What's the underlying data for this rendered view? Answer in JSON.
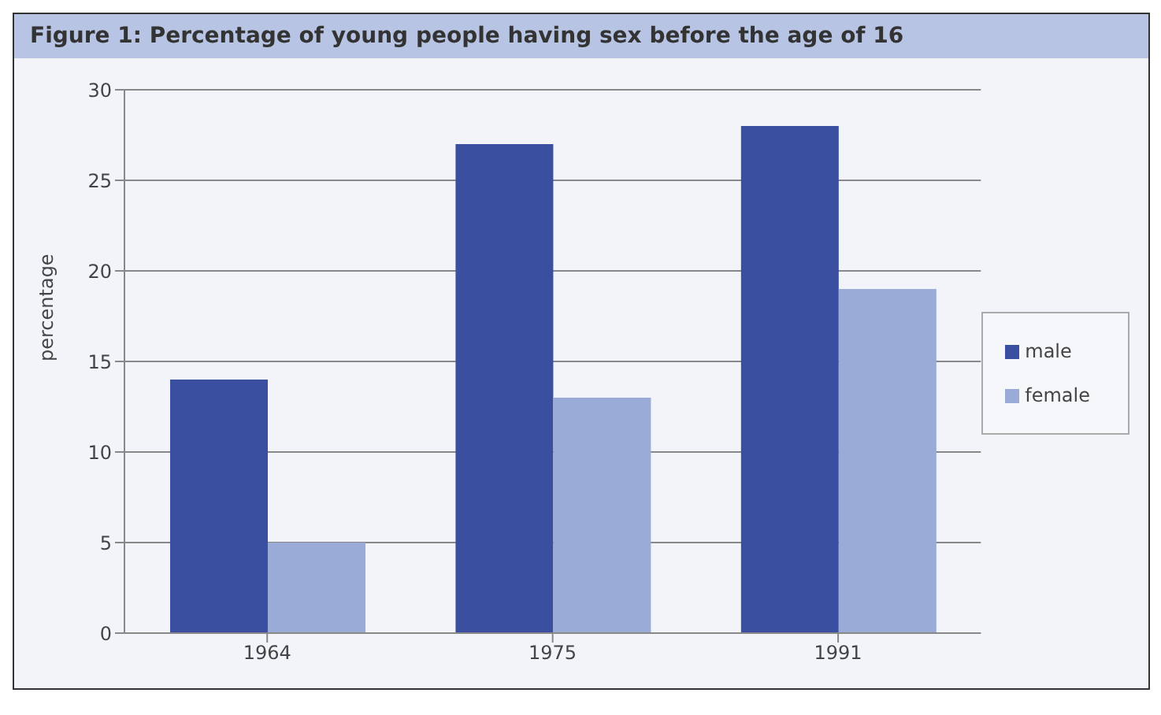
{
  "chart_data": {
    "type": "bar",
    "title": "Figure 1:  Percentage of young people having sex before the age of 16",
    "ylabel": "percentage",
    "categories": [
      "1964",
      "1975",
      "1991"
    ],
    "series": [
      {
        "name": "male",
        "color": "#3a4fa0",
        "values": [
          14,
          27,
          28
        ]
      },
      {
        "name": "female",
        "color": "#9aabd8",
        "values": [
          5,
          13,
          19
        ]
      }
    ],
    "ylim": [
      0,
      30
    ],
    "yticks": [
      0,
      5,
      10,
      15,
      20,
      25,
      30
    ],
    "grid": "y",
    "legend": "right"
  }
}
